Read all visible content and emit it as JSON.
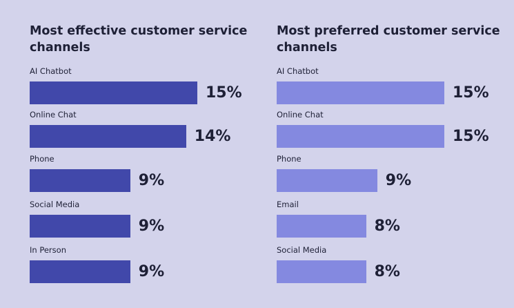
{
  "chart_data": [
    {
      "type": "bar",
      "orientation": "horizontal",
      "title": "Most effective customer service channels",
      "categories": [
        "AI Chatbot",
        "Online Chat",
        "Phone",
        "Social Media",
        "In Person"
      ],
      "values": [
        15,
        14,
        9,
        9,
        9
      ],
      "labels": [
        "15%",
        "14%",
        "9%",
        "9%",
        "9%"
      ],
      "color": "#4148aa",
      "xlim": [
        0,
        15
      ]
    },
    {
      "type": "bar",
      "orientation": "horizontal",
      "title": "Most preferred customer service channels",
      "categories": [
        "AI Chatbot",
        "Online Chat",
        "Phone",
        "Email",
        "Social Media"
      ],
      "values": [
        15,
        15,
        9,
        8,
        8
      ],
      "labels": [
        "15%",
        "15%",
        "9%",
        "8%",
        "8%"
      ],
      "color": "#8489e0",
      "xlim": [
        0,
        15
      ]
    }
  ]
}
